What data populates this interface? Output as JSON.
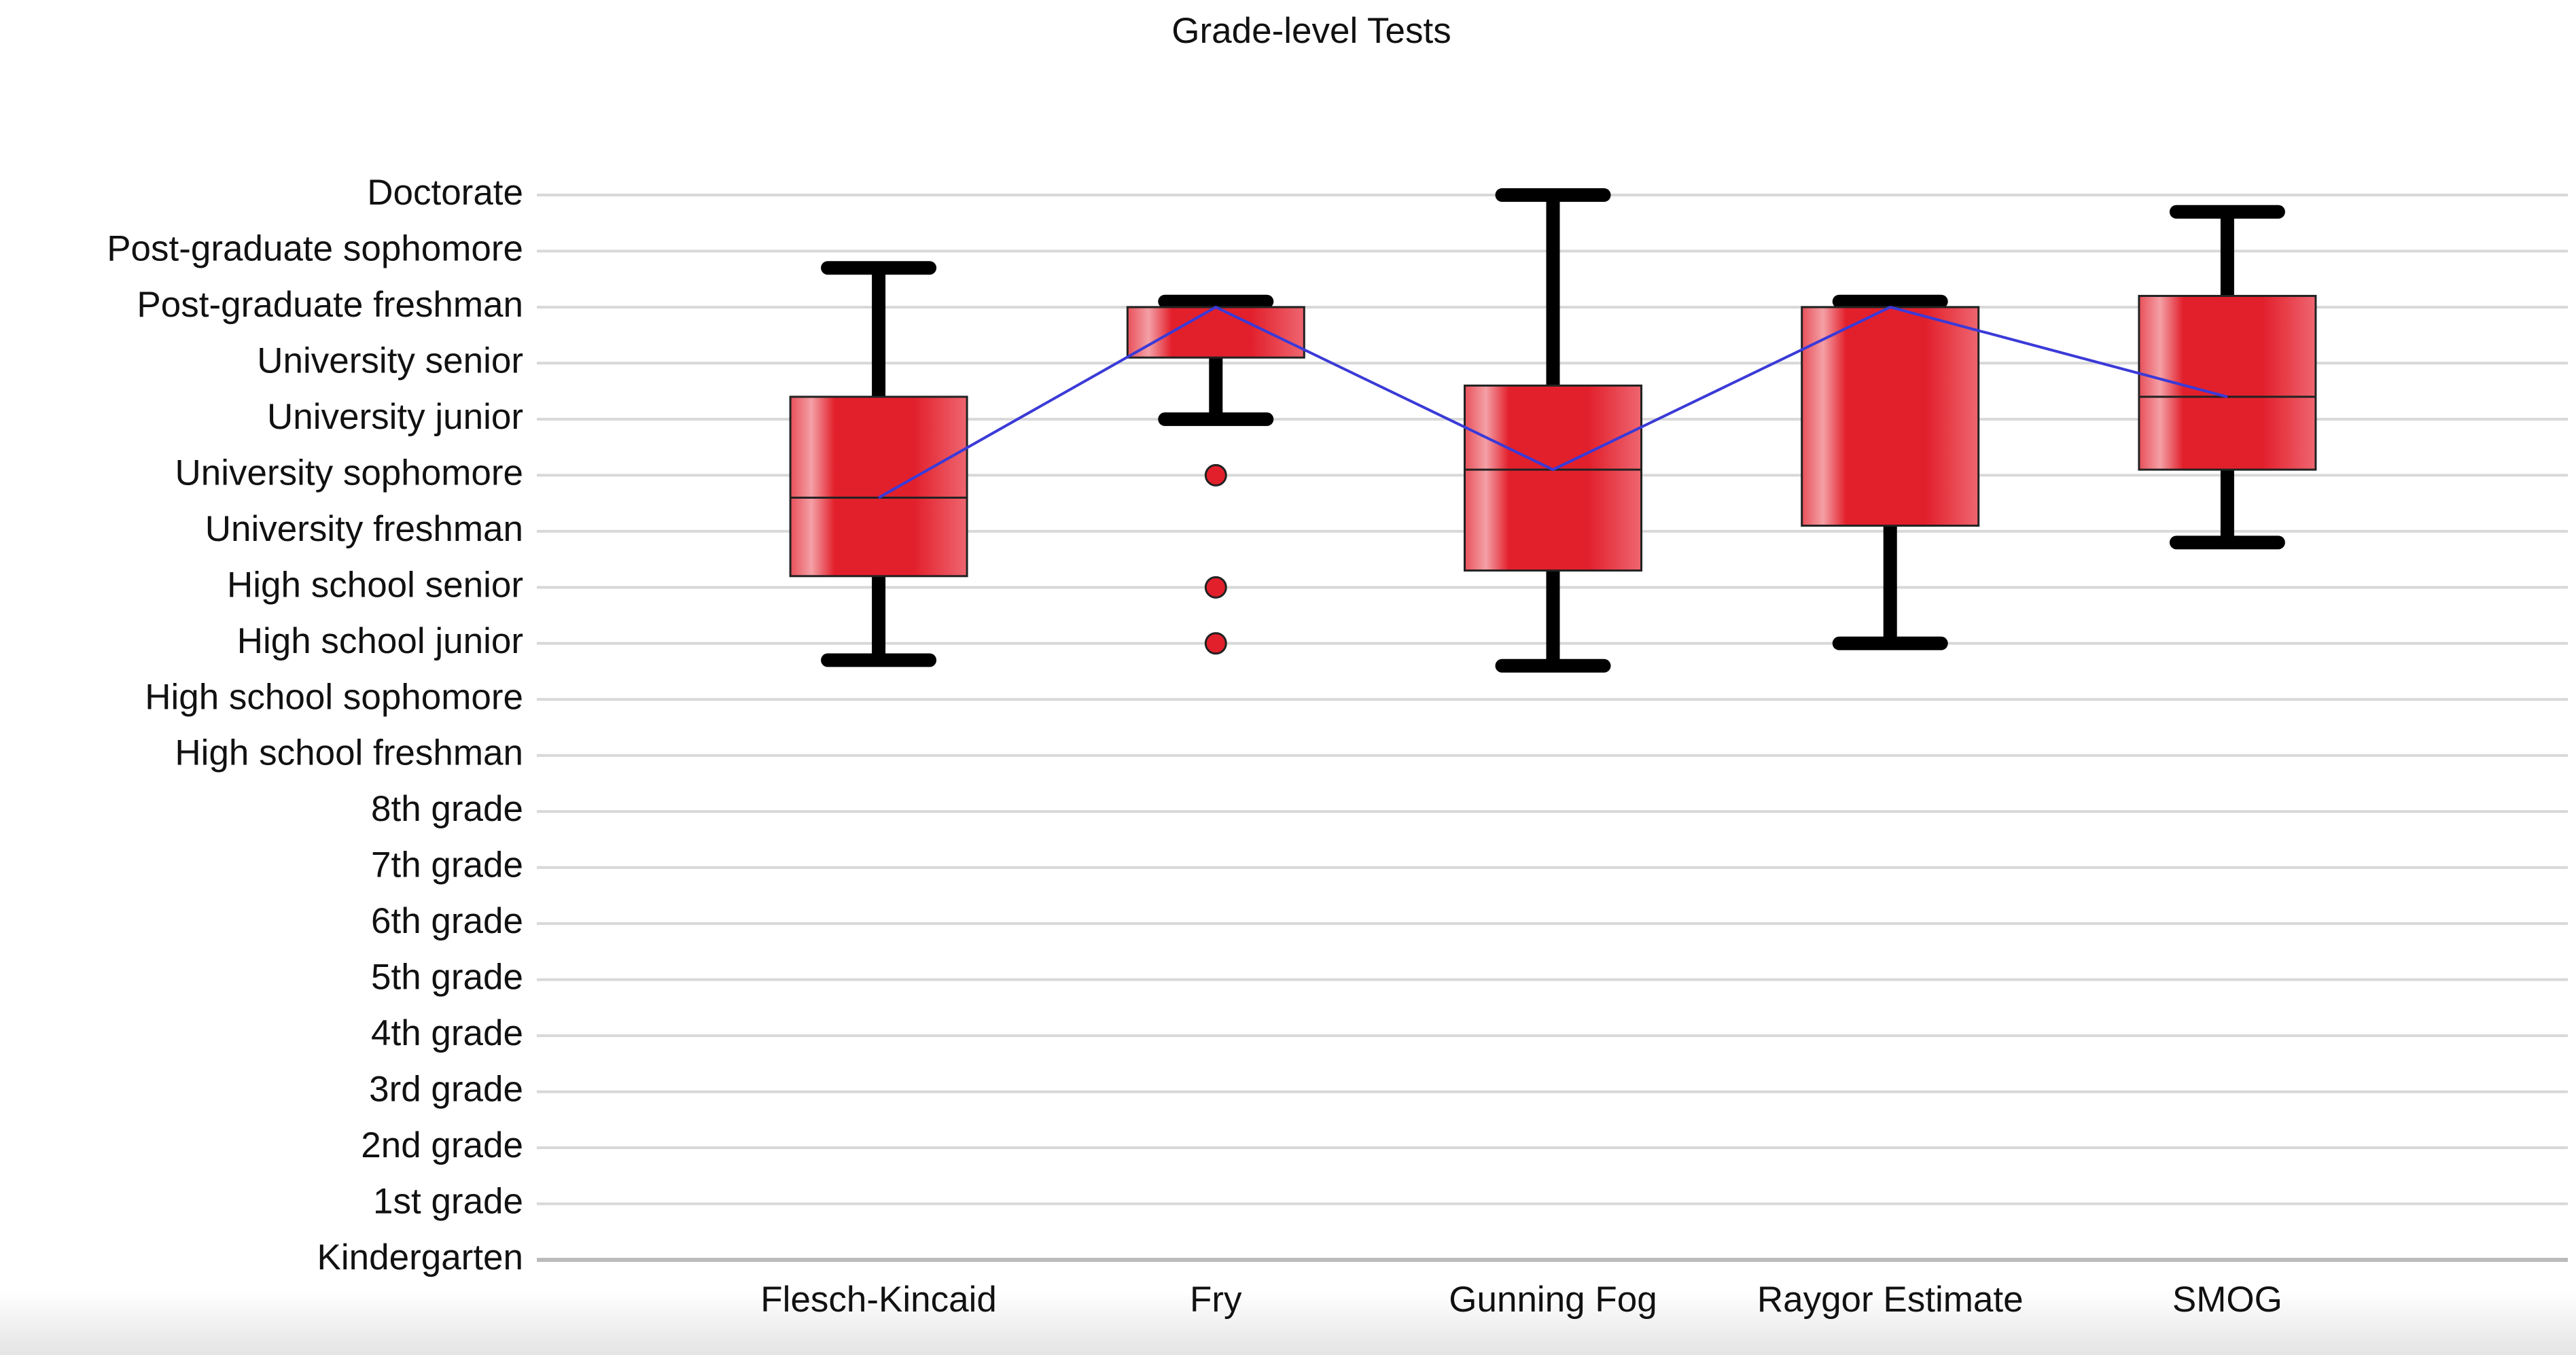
{
  "chart_data": {
    "type": "box",
    "title": "Grade-level Tests",
    "categories": [
      "Flesch-Kincaid",
      "Fry",
      "Gunning Fog",
      "Raygor Estimate",
      "SMOG"
    ],
    "boxes": [
      {
        "whisker_low": 10.7,
        "q1": 12.2,
        "median": 13.6,
        "q3": 15.4,
        "whisker_high": 17.7,
        "outliers": []
      },
      {
        "whisker_low": 15,
        "q1": 16.1,
        "median": 17,
        "q3": 17,
        "whisker_high": 17.1,
        "outliers": [
          14,
          12,
          11
        ]
      },
      {
        "whisker_low": 10.6,
        "q1": 12.3,
        "median": 14.1,
        "q3": 15.6,
        "whisker_high": 19,
        "outliers": []
      },
      {
        "whisker_low": 11,
        "q1": 13.1,
        "median": 17,
        "q3": 17,
        "whisker_high": 17.1,
        "outliers": []
      },
      {
        "whisker_low": 12.8,
        "q1": 14.1,
        "median": 15.4,
        "q3": 17.2,
        "whisker_high": 18.7,
        "outliers": []
      }
    ],
    "color": "#e2202c",
    "median_line_color": "#3a3ad8",
    "whisker_color": "#000000",
    "ylim": [
      0,
      19
    ],
    "yticks": [
      {
        "value": 0,
        "label": "Kindergarten"
      },
      {
        "value": 1,
        "label": "1st grade"
      },
      {
        "value": 2,
        "label": "2nd grade"
      },
      {
        "value": 3,
        "label": "3rd grade"
      },
      {
        "value": 4,
        "label": "4th grade"
      },
      {
        "value": 5,
        "label": "5th grade"
      },
      {
        "value": 6,
        "label": "6th grade"
      },
      {
        "value": 7,
        "label": "7th grade"
      },
      {
        "value": 8,
        "label": "8th grade"
      },
      {
        "value": 9,
        "label": "High school freshman"
      },
      {
        "value": 10,
        "label": "High school sophomore"
      },
      {
        "value": 11,
        "label": "High school junior"
      },
      {
        "value": 12,
        "label": "High school senior"
      },
      {
        "value": 13,
        "label": "University freshman"
      },
      {
        "value": 14,
        "label": "University sophomore"
      },
      {
        "value": 15,
        "label": "University junior"
      },
      {
        "value": 16,
        "label": "University senior"
      },
      {
        "value": 17,
        "label": "Post-graduate freshman"
      },
      {
        "value": 18,
        "label": "Post-graduate sophomore"
      },
      {
        "value": 19,
        "label": "Doctorate"
      }
    ],
    "grid": true
  }
}
